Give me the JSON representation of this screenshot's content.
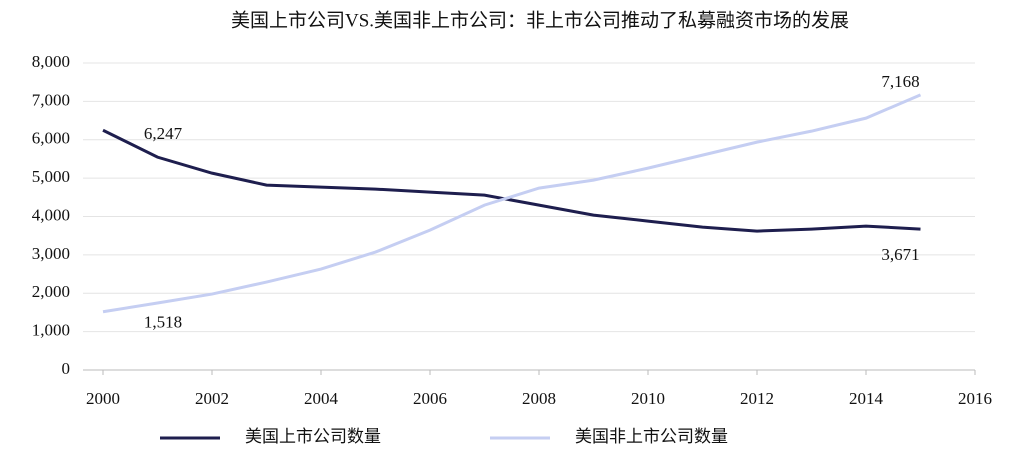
{
  "chart_data": {
    "type": "line",
    "title": "美国上市公司VS.美国非上市公司：非上市公司推动了私募融资市场的发展",
    "x": [
      2000,
      2001,
      2002,
      2003,
      2004,
      2005,
      2006,
      2007,
      2008,
      2009,
      2010,
      2011,
      2012,
      2013,
      2014,
      2015
    ],
    "series": [
      {
        "name": "美国上市公司数量",
        "color": "#1e1e4e",
        "values": [
          6247,
          5547,
          5130,
          4818,
          4766,
          4714,
          4635,
          4557,
          4297,
          4036,
          3880,
          3724,
          3620,
          3672,
          3750,
          3671
        ],
        "value_labels": [
          "6,247",
          null,
          null,
          null,
          null,
          null,
          null,
          null,
          null,
          null,
          null,
          null,
          null,
          null,
          null,
          "3,671"
        ]
      },
      {
        "name": "美国非上市公司数量",
        "color": "#c5cef2",
        "values": [
          1518,
          1745,
          1979,
          2292,
          2630,
          3073,
          3646,
          4297,
          4740,
          4948,
          5260,
          5599,
          5938,
          6224,
          6563,
          7168
        ],
        "value_labels": [
          "1,518",
          null,
          null,
          null,
          null,
          null,
          null,
          null,
          null,
          null,
          null,
          null,
          null,
          null,
          null,
          "7,168"
        ]
      }
    ],
    "xlim": [
      2000,
      2016
    ],
    "xticks": [
      2000,
      2002,
      2004,
      2006,
      2008,
      2010,
      2012,
      2014,
      2016
    ],
    "ylim": [
      0,
      8000
    ],
    "yticks": [
      0,
      {
        "value": 1000,
        "label": "1,000"
      },
      {
        "value": 2000,
        "label": "2,000"
      },
      {
        "value": 3000,
        "label": "3,000"
      },
      {
        "value": 4000,
        "label": "4,000"
      },
      {
        "value": 5000,
        "label": "5,000"
      },
      {
        "value": 6000,
        "label": "6,000"
      },
      {
        "value": 7000,
        "label": "7,000"
      },
      {
        "value": 8000,
        "label": "8,000"
      }
    ],
    "grid": true,
    "legend": "bottom"
  }
}
